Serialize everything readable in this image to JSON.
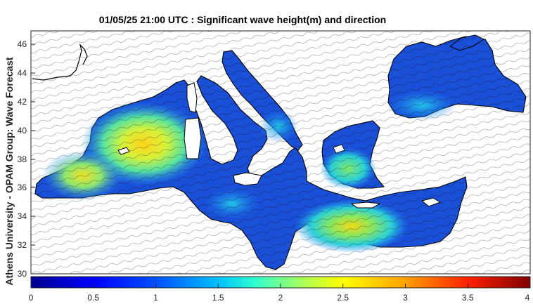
{
  "title": "01/05/25 21:00 UTC : Significant wave height(m) and direction",
  "side_label": "Athens University - OPAM Group: Wave Forecast",
  "latitude_ticks": [
    "46",
    "44",
    "42",
    "40",
    "38",
    "36",
    "34",
    "32",
    "30"
  ],
  "colorbar": {
    "tick_labels": [
      "0",
      "0.5",
      "1",
      "1.5",
      "2",
      "2.5",
      "3",
      "3.5",
      "4"
    ],
    "min": 0,
    "max": 4,
    "colormap": [
      "#00008f",
      "#0000ff",
      "#0080ff",
      "#00ffff",
      "#80ff80",
      "#ffff00",
      "#ff8000",
      "#ff0000",
      "#800000"
    ]
  },
  "colors": {
    "land": "#ffffff",
    "calm_sea": "#1a4fd8",
    "hotspot_high": "#ffd21a"
  }
}
